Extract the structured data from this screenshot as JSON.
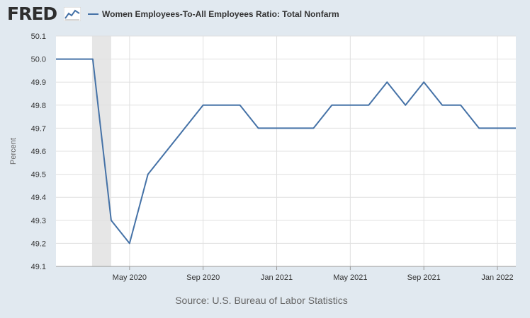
{
  "logo": {
    "text": "FRED"
  },
  "colors": {
    "line": "#4572a7",
    "recession": "#e6e6e6",
    "grid": "#e0e0e0",
    "background": "#e1e9f0"
  },
  "chart_data": {
    "type": "line",
    "title": "Women Employees-To-All Employees Ratio: Total Nonfarm",
    "ylabel": "Percent",
    "xlabel": "",
    "ylim": [
      49.1,
      50.1
    ],
    "yticks": [
      "49.1",
      "49.2",
      "49.3",
      "49.4",
      "49.5",
      "49.6",
      "49.7",
      "49.8",
      "49.9",
      "50.0",
      "50.1"
    ],
    "xticks": [
      "May 2020",
      "Sep 2020",
      "Jan 2021",
      "May 2021",
      "Sep 2021",
      "Jan 2022"
    ],
    "recession": {
      "start": "2020-03",
      "end": "2020-04"
    },
    "series": [
      {
        "name": "Women Employees-To-All Employees Ratio: Total Nonfarm",
        "x": [
          "2020-01",
          "2020-02",
          "2020-03",
          "2020-04",
          "2020-05",
          "2020-06",
          "2020-07",
          "2020-08",
          "2020-09",
          "2020-10",
          "2020-11",
          "2020-12",
          "2021-01",
          "2021-02",
          "2021-03",
          "2021-04",
          "2021-05",
          "2021-06",
          "2021-07",
          "2021-08",
          "2021-09",
          "2021-10",
          "2021-11",
          "2021-12",
          "2022-01",
          "2022-02"
        ],
        "values": [
          50.0,
          50.0,
          50.0,
          49.3,
          49.2,
          49.5,
          49.6,
          49.7,
          49.8,
          49.8,
          49.8,
          49.7,
          49.7,
          49.7,
          49.7,
          49.8,
          49.8,
          49.8,
          49.9,
          49.8,
          49.9,
          49.8,
          49.8,
          49.7,
          49.7,
          49.7
        ]
      }
    ],
    "grid": true,
    "legend": "top-left"
  },
  "source": "Source: U.S. Bureau of Labor Statistics"
}
